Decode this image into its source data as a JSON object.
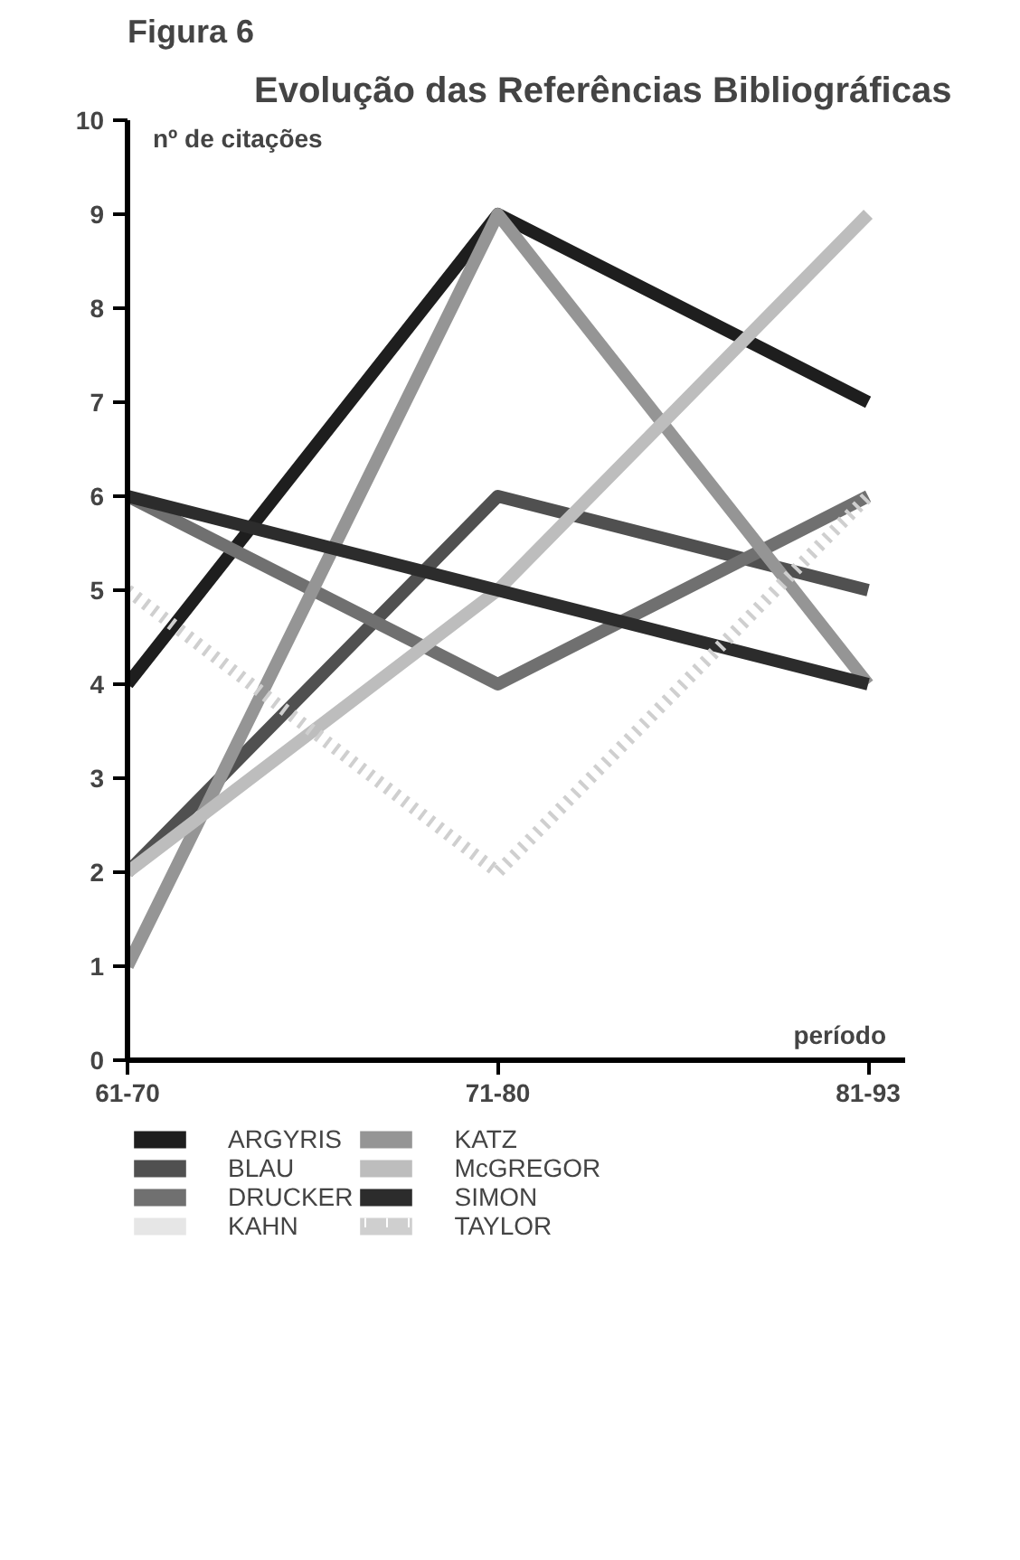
{
  "chart_data": {
    "type": "line",
    "title": "Evolução das Referências Bibliográficas",
    "xlabel": "período",
    "ylabel": "nº de citações",
    "annotations": [
      "Figura 6"
    ],
    "categories": [
      "61-70",
      "71-80",
      "81-93"
    ],
    "ylim": [
      0,
      10
    ],
    "yticks": [
      0,
      1,
      2,
      3,
      4,
      5,
      6,
      7,
      8,
      9,
      10
    ],
    "grid": false,
    "legend": "bottom",
    "marker": "none",
    "series": [
      {
        "name": "ARGYRIS",
        "color": "#1e1e1e",
        "values": [
          4,
          9,
          7
        ]
      },
      {
        "name": "BLAU",
        "color": "#505050",
        "values": [
          2,
          6,
          5
        ]
      },
      {
        "name": "DRUCKER",
        "color": "#707070",
        "values": [
          6,
          4,
          6
        ]
      },
      {
        "name": "KAHN",
        "color": "#e6e6e6",
        "values": [
          null,
          null,
          null
        ]
      },
      {
        "name": "KATZ",
        "color": "#959595",
        "values": [
          1,
          9,
          4
        ]
      },
      {
        "name": "McGREGOR",
        "color": "#bdbdbd",
        "values": [
          2,
          5,
          9
        ]
      },
      {
        "name": "SIMON",
        "color": "#2c2c2c",
        "values": [
          6,
          5,
          4
        ]
      },
      {
        "name": "TAYLOR",
        "color": "#cfcfcf",
        "values": [
          5,
          2,
          6
        ],
        "line_style": "dotted"
      }
    ]
  }
}
